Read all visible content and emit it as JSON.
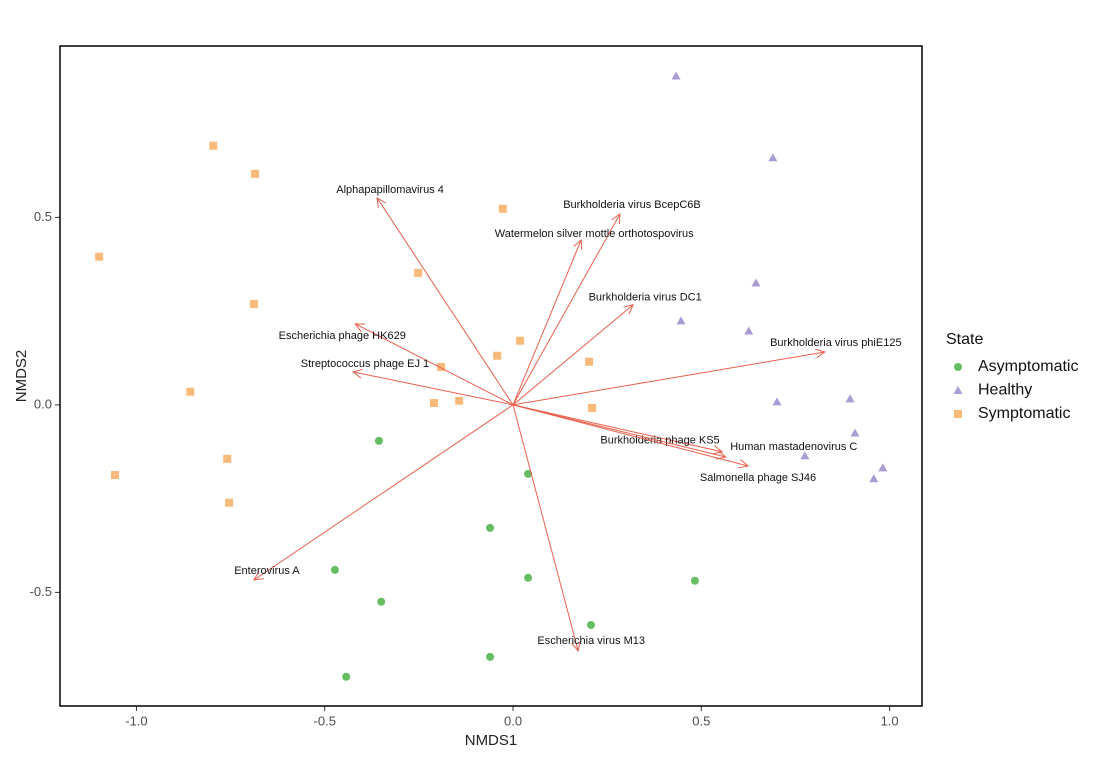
{
  "chart_data": {
    "type": "scatter",
    "x_label": "NMDS1",
    "y_label": "NMDS2",
    "legend_title": "State",
    "legend_position": "right",
    "xlim": [
      -1.203,
      1.086
    ],
    "ylim": [
      -0.803,
      0.957
    ],
    "xticks": [
      {
        "value": -1.0,
        "label": "-1.0"
      },
      -0.5,
      {
        "value": 0.0,
        "label": "0.0"
      },
      0.5,
      {
        "value": 1.0,
        "label": "1.0"
      }
    ],
    "yticks": [
      -0.5,
      {
        "value": 0.0,
        "label": "0.0"
      },
      0.5
    ],
    "grid": false,
    "series": [
      {
        "name": "Asymptomatic",
        "color": "#66bd63",
        "shape": "circle",
        "x": [
          -0.356,
          0.04,
          -0.061,
          0.04,
          0.483,
          -0.473,
          -0.35,
          0.207,
          -0.061,
          -0.443
        ],
        "y": [
          -0.096,
          -0.184,
          -0.328,
          -0.461,
          -0.469,
          -0.44,
          -0.525,
          -0.587,
          -0.672,
          -0.725
        ]
      },
      {
        "name": "Healthy",
        "color": "#a99cd4",
        "shape": "triangle",
        "x": [
          0.433,
          0.69,
          0.645,
          0.446,
          0.626,
          0.701,
          0.895,
          0.908,
          0.775,
          0.982,
          0.958
        ],
        "y": [
          0.877,
          0.659,
          0.325,
          0.224,
          0.197,
          0.008,
          0.016,
          -0.075,
          -0.136,
          -0.168,
          -0.197
        ]
      },
      {
        "name": "Symptomatic",
        "color": "#f9b97a",
        "shape": "square",
        "x": [
          -0.796,
          -0.685,
          -0.027,
          -1.099,
          -0.252,
          -0.688,
          0.019,
          -0.042,
          -0.191,
          0.202,
          -0.857,
          -0.21,
          -0.143,
          0.21,
          -0.759,
          -0.754,
          -1.057
        ],
        "y": [
          0.691,
          0.616,
          0.523,
          0.395,
          0.352,
          0.269,
          0.171,
          0.131,
          0.101,
          0.115,
          0.035,
          0.005,
          0.011,
          -0.008,
          -0.144,
          -0.261,
          -0.187
        ]
      }
    ],
    "arrows": {
      "color": "#e8604c",
      "labels": [
        "Alphapapillomavirus 4",
        "Burkholderia virus BcepC6B",
        "Watermelon silver mottle orthotospovirus",
        "Burkholderia virus DC1",
        "Escherichia phage HK629",
        "Streptococcus phage EJ 1",
        "Burkholderia virus phiE125",
        "Burkholderia phage KS5",
        "Human mastadenovirus C",
        "Salmonella phage SJ46",
        "Enterovirus A",
        "Escherichia virus M13"
      ],
      "x": [
        -0.361,
        0.284,
        0.181,
        0.319,
        -0.419,
        -0.425,
        0.828,
        0.555,
        0.565,
        0.624,
        -0.688,
        0.173
      ],
      "y": [
        0.552,
        0.509,
        0.44,
        0.267,
        0.216,
        0.088,
        0.141,
        -0.125,
        -0.139,
        -0.163,
        -0.467,
        -0.656
      ]
    }
  }
}
